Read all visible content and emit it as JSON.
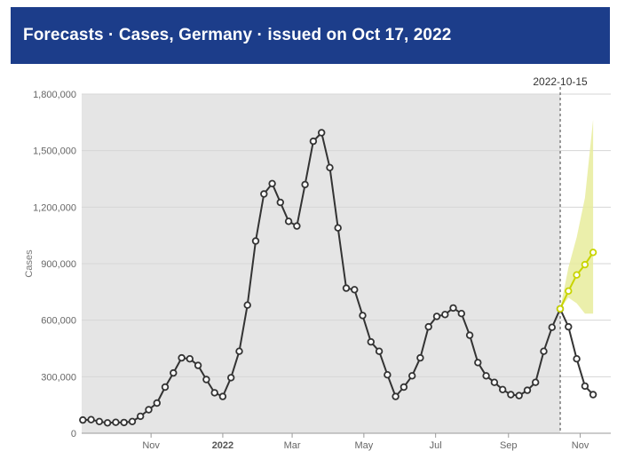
{
  "header": {
    "title": "Forecasts · Cases, Germany  · issued on Oct 17, 2022"
  },
  "chart_data": {
    "type": "line",
    "ylabel": "Cases",
    "ylim": [
      0,
      1800000
    ],
    "y_ticks": [
      {
        "value": 0,
        "label": "0"
      },
      {
        "value": 300000,
        "label": "300,000"
      },
      {
        "value": 600000,
        "label": "600,000"
      },
      {
        "value": 900000,
        "label": "900,000"
      },
      {
        "value": 1200000,
        "label": "1,200,000"
      },
      {
        "value": 1500000,
        "label": "1,500,000"
      },
      {
        "value": 1800000,
        "label": "1,800,000"
      }
    ],
    "x_ticks": [
      {
        "date": "2021-11-01",
        "label": "Nov",
        "bold": false
      },
      {
        "date": "2022-01-01",
        "label": "2022",
        "bold": true
      },
      {
        "date": "2022-03-01",
        "label": "Mar",
        "bold": false
      },
      {
        "date": "2022-05-01",
        "label": "May",
        "bold": false
      },
      {
        "date": "2022-07-01",
        "label": "Jul",
        "bold": false
      },
      {
        "date": "2022-09-01",
        "label": "Sep",
        "bold": false
      },
      {
        "date": "2022-11-01",
        "label": "Nov",
        "bold": false
      }
    ],
    "xlim": [
      "2021-09-03",
      "2022-11-27"
    ],
    "history_end_date": "2022-10-15",
    "reference_line": {
      "date": "2022-10-15",
      "label": "2022-10-15"
    },
    "colors": {
      "history_bg": "#e5e5e5",
      "observed": "#333333",
      "forecast": "#c8d400",
      "band": "#e8ec9c"
    },
    "series": [
      {
        "id": "observed",
        "points": [
          {
            "x": "2021-09-04",
            "y": 70000
          },
          {
            "x": "2021-09-11",
            "y": 72000
          },
          {
            "x": "2021-09-18",
            "y": 62000
          },
          {
            "x": "2021-09-25",
            "y": 55000
          },
          {
            "x": "2021-10-02",
            "y": 58000
          },
          {
            "x": "2021-10-09",
            "y": 57000
          },
          {
            "x": "2021-10-16",
            "y": 62000
          },
          {
            "x": "2021-10-23",
            "y": 90000
          },
          {
            "x": "2021-10-30",
            "y": 125000
          },
          {
            "x": "2021-11-06",
            "y": 160000
          },
          {
            "x": "2021-11-13",
            "y": 245000
          },
          {
            "x": "2021-11-20",
            "y": 320000
          },
          {
            "x": "2021-11-27",
            "y": 400000
          },
          {
            "x": "2021-12-04",
            "y": 395000
          },
          {
            "x": "2021-12-11",
            "y": 360000
          },
          {
            "x": "2021-12-18",
            "y": 285000
          },
          {
            "x": "2021-12-25",
            "y": 215000
          },
          {
            "x": "2022-01-01",
            "y": 195000
          },
          {
            "x": "2022-01-08",
            "y": 295000
          },
          {
            "x": "2022-01-15",
            "y": 435000
          },
          {
            "x": "2022-01-22",
            "y": 680000
          },
          {
            "x": "2022-01-29",
            "y": 1020000
          },
          {
            "x": "2022-02-05",
            "y": 1270000
          },
          {
            "x": "2022-02-12",
            "y": 1325000
          },
          {
            "x": "2022-02-19",
            "y": 1225000
          },
          {
            "x": "2022-02-26",
            "y": 1125000
          },
          {
            "x": "2022-03-05",
            "y": 1100000
          },
          {
            "x": "2022-03-12",
            "y": 1320000
          },
          {
            "x": "2022-03-19",
            "y": 1550000
          },
          {
            "x": "2022-03-26",
            "y": 1595000
          },
          {
            "x": "2022-04-02",
            "y": 1410000
          },
          {
            "x": "2022-04-09",
            "y": 1090000
          },
          {
            "x": "2022-04-16",
            "y": 770000
          },
          {
            "x": "2022-04-23",
            "y": 762000
          },
          {
            "x": "2022-04-30",
            "y": 625000
          },
          {
            "x": "2022-05-07",
            "y": 485000
          },
          {
            "x": "2022-05-14",
            "y": 435000
          },
          {
            "x": "2022-05-21",
            "y": 310000
          },
          {
            "x": "2022-05-28",
            "y": 195000
          },
          {
            "x": "2022-06-04",
            "y": 245000
          },
          {
            "x": "2022-06-11",
            "y": 305000
          },
          {
            "x": "2022-06-18",
            "y": 400000
          },
          {
            "x": "2022-06-25",
            "y": 565000
          },
          {
            "x": "2022-07-02",
            "y": 620000
          },
          {
            "x": "2022-07-09",
            "y": 630000
          },
          {
            "x": "2022-07-16",
            "y": 665000
          },
          {
            "x": "2022-07-23",
            "y": 635000
          },
          {
            "x": "2022-07-30",
            "y": 520000
          },
          {
            "x": "2022-08-06",
            "y": 375000
          },
          {
            "x": "2022-08-13",
            "y": 305000
          },
          {
            "x": "2022-08-20",
            "y": 270000
          },
          {
            "x": "2022-08-27",
            "y": 232000
          },
          {
            "x": "2022-09-03",
            "y": 205000
          },
          {
            "x": "2022-09-10",
            "y": 200000
          },
          {
            "x": "2022-09-17",
            "y": 228000
          },
          {
            "x": "2022-09-24",
            "y": 270000
          },
          {
            "x": "2022-10-01",
            "y": 435000
          },
          {
            "x": "2022-10-08",
            "y": 562000
          },
          {
            "x": "2022-10-15",
            "y": 660000
          },
          {
            "x": "2022-10-22",
            "y": 565000
          },
          {
            "x": "2022-10-29",
            "y": 395000
          },
          {
            "x": "2022-11-05",
            "y": 250000
          },
          {
            "x": "2022-11-12",
            "y": 205000
          }
        ]
      },
      {
        "id": "forecast",
        "points": [
          {
            "x": "2022-10-15",
            "y": 660000
          },
          {
            "x": "2022-10-22",
            "y": 755000
          },
          {
            "x": "2022-10-29",
            "y": 840000
          },
          {
            "x": "2022-11-05",
            "y": 895000
          },
          {
            "x": "2022-11-12",
            "y": 960000
          }
        ]
      }
    ],
    "interval": {
      "points": [
        {
          "x": "2022-10-15",
          "lower": 660000,
          "upper": 660000
        },
        {
          "x": "2022-10-22",
          "lower": 720000,
          "upper": 880000
        },
        {
          "x": "2022-10-29",
          "lower": 690000,
          "upper": 1040000
        },
        {
          "x": "2022-11-05",
          "lower": 635000,
          "upper": 1250000
        },
        {
          "x": "2022-11-12",
          "lower": 635000,
          "upper": 1665000
        }
      ]
    }
  }
}
